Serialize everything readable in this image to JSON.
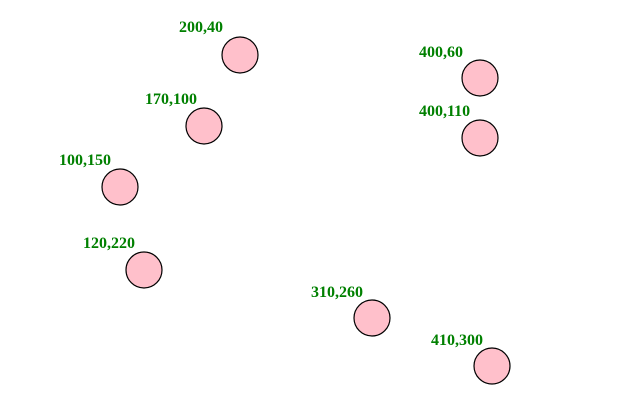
{
  "colors": {
    "node_fill": "#ffc0cb",
    "node_stroke": "#000000",
    "label": "#008000"
  },
  "nodes": [
    {
      "label": "200,40"
    },
    {
      "label": "400,60"
    },
    {
      "label": "170,100"
    },
    {
      "label": "400,110"
    },
    {
      "label": "100,150"
    },
    {
      "label": "120,220"
    },
    {
      "label": "310,260"
    },
    {
      "label": "410,300"
    }
  ]
}
